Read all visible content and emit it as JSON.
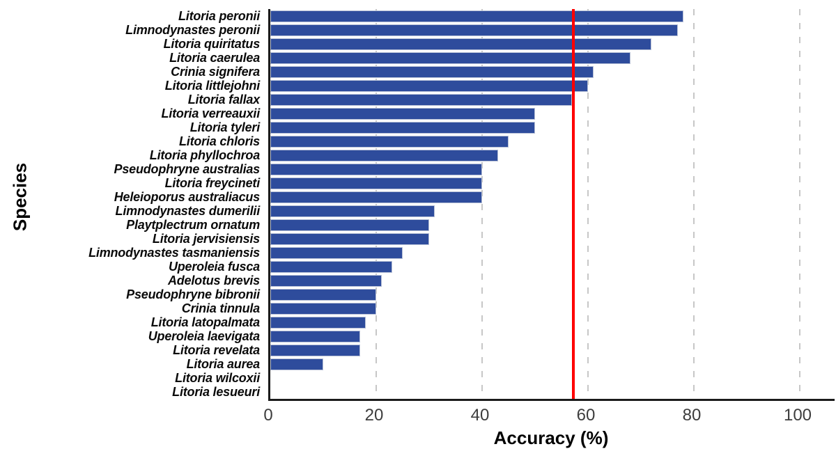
{
  "chart_data": {
    "type": "bar",
    "orientation": "horizontal",
    "title": "",
    "xlabel": "Accuracy (%)",
    "ylabel": "Species",
    "xlim": [
      0,
      106
    ],
    "x_ticks": [
      0,
      20,
      40,
      60,
      80,
      100
    ],
    "grid": {
      "vertical_dashed_at": [
        20,
        40,
        60,
        80,
        100
      ],
      "color": "#c7c7c7"
    },
    "reference_line": {
      "value": 57.2,
      "color": "#ff0000"
    },
    "bar_color": "#2e4c9c",
    "bar_border_color": "#b7c0d6",
    "categories": [
      "Litoria peronii",
      "Limnodynastes peronii",
      "Litoria quiritatus",
      "Litoria caerulea",
      "Crinia signifera",
      "Litoria littlejohni",
      "Litoria fallax",
      "Litoria verreauxii",
      "Litoria tyleri",
      "Litoria chloris",
      "Litoria phyllochroa",
      "Pseudophryne australias",
      "Litoria freycineti",
      "Heleioporus australiacus",
      "Limnodynastes dumerilii",
      "Playtplectrum ornatum",
      "Litoria jervisiensis",
      "Limnodynastes tasmaniensis",
      "Uperoleia fusca",
      "Adelotus brevis",
      "Pseudophryne bibronii",
      "Crinia tinnula",
      "Litoria latopalmata",
      "Uperoleia laevigata",
      "Litoria revelata",
      "Litoria aurea",
      "Litoria wilcoxii",
      "Litoria lesueuri"
    ],
    "values": [
      78,
      77,
      72,
      68,
      61,
      60,
      57,
      50,
      50,
      45,
      43,
      40,
      40,
      40,
      31,
      30,
      30,
      25,
      23,
      21,
      20,
      20,
      18,
      17,
      17,
      10,
      0,
      0
    ]
  }
}
